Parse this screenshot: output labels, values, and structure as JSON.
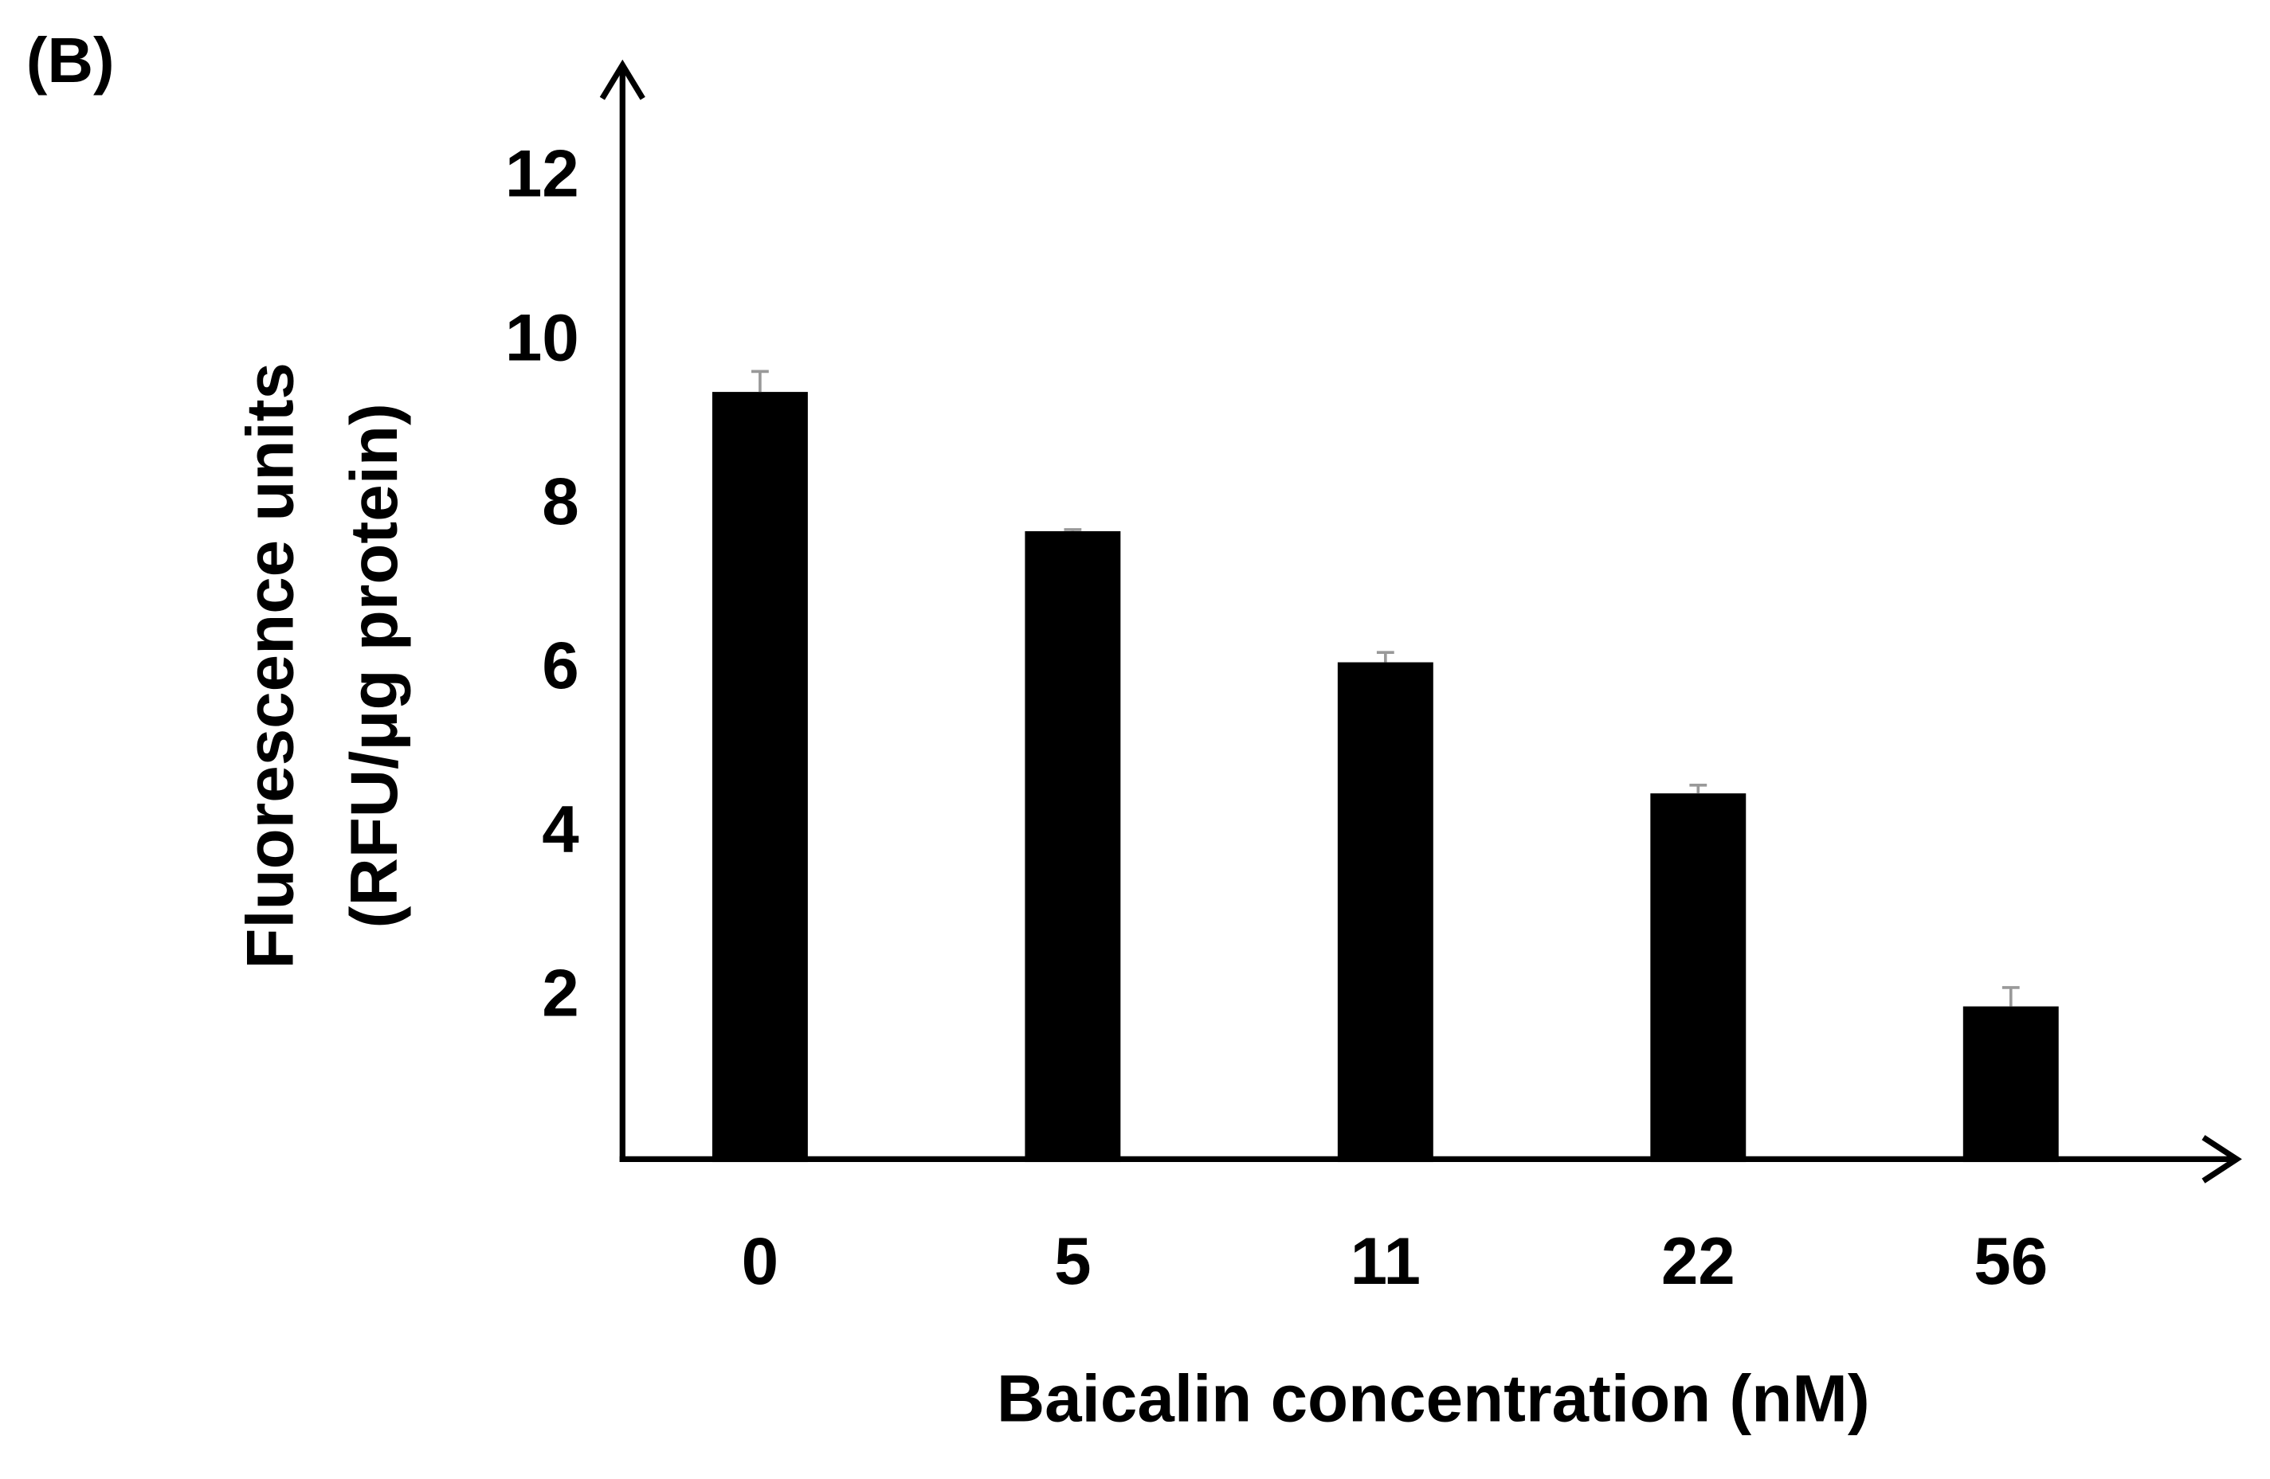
{
  "chart_data": {
    "type": "bar",
    "panel_label": "(B)",
    "y_label": [
      "Fluorescence units",
      "(RFU/μg protein)"
    ],
    "x_label": "Baicalin concentration (nM)",
    "categories": [
      "0",
      "5",
      "11",
      "22",
      "56"
    ],
    "values": [
      9.4,
      7.7,
      6.1,
      4.5,
      1.9
    ],
    "errors": [
      0.25,
      0.02,
      0.12,
      0.1,
      0.23
    ],
    "color": "#000000",
    "error_color": "#999999",
    "ylim": [
      0,
      13
    ],
    "yticks": [
      2,
      4,
      6,
      8,
      10,
      12
    ]
  }
}
